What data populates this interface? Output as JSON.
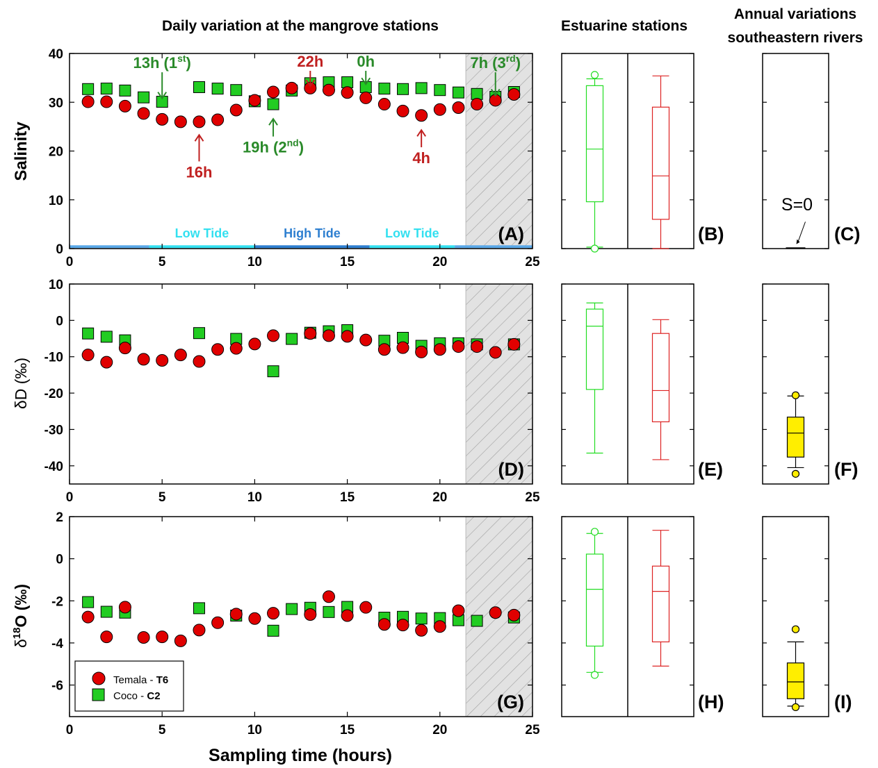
{
  "titles": {
    "main": "Daily variation at the mangrove stations",
    "estuarine": "Estuarine stations",
    "annual_line1": "Annual variations",
    "annual_line2": "southeastern rivers"
  },
  "axes": {
    "xlabel": "Sampling time (hours)",
    "ylabel_salinity": "Salinity",
    "ylabel_dD": "δD (‰)",
    "ylabel_d18O_prefix": "δ",
    "ylabel_d18O_sup": "18",
    "ylabel_d18O_suffix": "O (‰)",
    "xticks": [
      0,
      5,
      10,
      15,
      20,
      25
    ],
    "xlim": [
      0,
      25
    ],
    "salinity": {
      "ylim": [
        0,
        40
      ],
      "ticks": [
        0,
        10,
        20,
        30,
        40
      ]
    },
    "dD": {
      "ylim": [
        -45,
        10
      ],
      "ticks": [
        -40,
        -30,
        -20,
        -10,
        0,
        10
      ]
    },
    "d18O": {
      "ylim": [
        -7.5,
        2
      ],
      "ticks": [
        -6,
        -4,
        -2,
        0,
        2
      ]
    }
  },
  "panels": [
    "(A)",
    "(B)",
    "(C)",
    "(D)",
    "(E)",
    "(F)",
    "(G)",
    "(H)",
    "(I)"
  ],
  "legend": {
    "items": [
      {
        "name": "Temala - ",
        "bold": "T6",
        "color": "#e00000",
        "marker": "circle"
      },
      {
        "name": "Coco - ",
        "bold": "C2",
        "color": "#22cc22",
        "marker": "square"
      }
    ]
  },
  "tides": [
    {
      "label": "Low Tide",
      "color": "#33e0f0",
      "from": 4.3,
      "to": 10
    },
    {
      "label": "High Tide",
      "color": "#2e7fd0",
      "from": 10,
      "to": 16.2
    },
    {
      "label": "Low Tide",
      "color": "#33e0f0",
      "from": 16.2,
      "to": 20.8
    },
    {
      "label": "",
      "color": "#5aa8e8",
      "from": 0,
      "to": 4.3
    },
    {
      "label": "",
      "color": "#5aa8e8",
      "from": 20.8,
      "to": 25
    }
  ],
  "shade": {
    "from": 21.4,
    "to": 25
  },
  "annotations": [
    {
      "text": "13h (1",
      "sup": "st",
      "close": ")",
      "color": "green",
      "x": 5,
      "y_text": 37,
      "y_tip": 30.8,
      "dir": "down"
    },
    {
      "text": "19h (2",
      "sup": "nd",
      "close": ")",
      "color": "green",
      "x": 11,
      "y_text": 19.7,
      "y_tip": 26.6,
      "dir": "up"
    },
    {
      "text": "0h",
      "sup": "",
      "close": "",
      "color": "green",
      "x": 16,
      "y_text": 37.3,
      "y_tip": 33.7,
      "dir": "down"
    },
    {
      "text": "7h (3",
      "sup": "rd",
      "close": ")",
      "color": "green",
      "x": 23,
      "y_text": 37,
      "y_tip": 31.4,
      "dir": "down"
    },
    {
      "text": "22h",
      "sup": "",
      "close": "",
      "color": "red",
      "x": 13,
      "y_text": 37.3,
      "y_tip": 33.3,
      "dir": "down"
    },
    {
      "text": "16h",
      "sup": "",
      "close": "",
      "color": "red",
      "x": 7,
      "y_text": 14.6,
      "y_tip": 23.3,
      "dir": "up"
    },
    {
      "text": "4h",
      "sup": "",
      "close": "",
      "color": "red",
      "x": 19,
      "y_text": 17.5,
      "y_tip": 24.3,
      "dir": "up"
    }
  ],
  "s0_label": "S=0",
  "chart_data": [
    {
      "type": "scatter",
      "panel": "(A)",
      "ylabel": "Salinity",
      "xlabel": "",
      "xlim": [
        0,
        25
      ],
      "ylim": [
        0,
        40
      ],
      "series": [
        {
          "name": "Temala - T6",
          "x": [
            1,
            2,
            3,
            4,
            5,
            6,
            7,
            8,
            9,
            10,
            11,
            12,
            13,
            14,
            15,
            16,
            17,
            18,
            19,
            20,
            21,
            22,
            23,
            24
          ],
          "values": [
            30.1,
            30.1,
            29.2,
            27.7,
            26.5,
            26.0,
            26.0,
            26.4,
            28.4,
            30.4,
            32.1,
            32.9,
            32.9,
            32.5,
            32.0,
            30.9,
            29.6,
            28.2,
            27.3,
            28.5,
            28.9,
            29.6,
            30.4,
            31.6
          ]
        },
        {
          "name": "Coco - C2",
          "x": [
            1,
            2,
            3,
            4,
            5,
            7,
            8,
            9,
            10,
            11,
            12,
            13,
            14,
            15,
            16,
            17,
            18,
            19,
            20,
            21,
            22,
            23,
            24
          ],
          "values": [
            32.7,
            32.8,
            32.4,
            31.0,
            30.1,
            33.1,
            32.8,
            32.5,
            30.2,
            29.6,
            32.4,
            33.9,
            34.1,
            34.1,
            33.1,
            32.8,
            32.7,
            32.9,
            32.5,
            32.0,
            31.7,
            31.1,
            32.1
          ]
        }
      ]
    },
    {
      "type": "scatter",
      "panel": "(D)",
      "ylabel": "δD (‰)",
      "xlabel": "",
      "xlim": [
        0,
        25
      ],
      "ylim": [
        -45,
        10
      ],
      "series": [
        {
          "name": "Temala - T6",
          "x": [
            1,
            2,
            3,
            4,
            5,
            6,
            7,
            8,
            9,
            10,
            11,
            13,
            14,
            15,
            16,
            17,
            18,
            19,
            20,
            21,
            22,
            23,
            24
          ],
          "values": [
            -9.5,
            -11.5,
            -7.6,
            -10.7,
            -11.0,
            -9.5,
            -11.3,
            -8.0,
            -7.7,
            -6.5,
            -4.2,
            -3.6,
            -4.2,
            -4.4,
            -5.4,
            -8.0,
            -7.5,
            -8.7,
            -8.0,
            -7.2,
            -7.2,
            -8.8,
            -6.6
          ]
        },
        {
          "name": "Coco - C2",
          "x": [
            1,
            2,
            3,
            7,
            9,
            11,
            12,
            13,
            14,
            15,
            17,
            18,
            19,
            20,
            21,
            22,
            24
          ],
          "values": [
            -3.6,
            -4.5,
            -5.5,
            -3.5,
            -5.1,
            -14.0,
            -5.1,
            -3.4,
            -3.0,
            -2.7,
            -5.6,
            -4.8,
            -7.0,
            -6.3,
            -6.3,
            -6.6,
            -6.6
          ]
        }
      ]
    },
    {
      "type": "scatter",
      "panel": "(G)",
      "ylabel": "δ18O (‰)",
      "xlabel": "Sampling time (hours)",
      "xlim": [
        0,
        25
      ],
      "ylim": [
        -7.5,
        2
      ],
      "series": [
        {
          "name": "Temala - T6",
          "x": [
            1,
            2,
            3,
            4,
            5,
            6,
            7,
            8,
            9,
            10,
            11,
            13,
            14,
            15,
            16,
            17,
            18,
            19,
            20,
            21,
            23,
            24
          ],
          "values": [
            -2.77,
            -3.71,
            -2.3,
            -3.74,
            -3.71,
            -3.9,
            -3.39,
            -3.04,
            -2.63,
            -2.84,
            -2.59,
            -2.65,
            -1.8,
            -2.7,
            -2.31,
            -3.12,
            -3.15,
            -3.4,
            -3.22,
            -2.47,
            -2.56,
            -2.68
          ]
        },
        {
          "name": "Coco - C2",
          "x": [
            1,
            2,
            3,
            7,
            9,
            11,
            12,
            13,
            14,
            15,
            17,
            18,
            19,
            20,
            21,
            22,
            24
          ],
          "values": [
            -2.06,
            -2.52,
            -2.56,
            -2.35,
            -2.7,
            -3.42,
            -2.39,
            -2.33,
            -2.53,
            -2.29,
            -2.8,
            -2.76,
            -2.84,
            -2.82,
            -2.92,
            -2.95,
            -2.79
          ]
        }
      ]
    },
    {
      "type": "box",
      "panel": "(B)",
      "title": "Estuarine stations",
      "ylim": [
        0,
        40
      ],
      "boxes": [
        {
          "color": "#22dd22",
          "min": 0.3,
          "q1": 9.6,
          "median": 20.4,
          "q3": 33.4,
          "max": 34.8,
          "outliers": [
            0.0,
            35.6
          ]
        },
        {
          "color": "#dd2222",
          "min": 0.0,
          "q1": 6.0,
          "median": 14.9,
          "q3": 29.0,
          "max": 35.4,
          "outliers": []
        }
      ]
    },
    {
      "type": "box",
      "panel": "(C)",
      "title": "Annual variations southeastern rivers",
      "ylim": [
        0,
        40
      ],
      "boxes": [
        {
          "color": "#000000",
          "min": 0,
          "q1": 0,
          "median": 0,
          "q3": 0,
          "max": 0,
          "outliers": []
        }
      ]
    },
    {
      "type": "box",
      "panel": "(E)",
      "ylim": [
        -45,
        10
      ],
      "boxes": [
        {
          "color": "#22dd22",
          "min": -36.5,
          "q1": -19.0,
          "median": -1.6,
          "q3": 3.1,
          "max": 4.8,
          "outliers": []
        },
        {
          "color": "#dd2222",
          "min": -38.3,
          "q1": -27.9,
          "median": -19.3,
          "q3": -3.6,
          "max": 0.2,
          "outliers": []
        }
      ]
    },
    {
      "type": "box",
      "panel": "(F)",
      "ylim": [
        -45,
        10
      ],
      "boxes": [
        {
          "color": "#ffee00",
          "min": -40.5,
          "q1": -37.6,
          "median": -31.0,
          "q3": -26.6,
          "max": -20.8,
          "outliers": [
            -20.6,
            -42.2
          ]
        }
      ]
    },
    {
      "type": "box",
      "panel": "(H)",
      "ylim": [
        -7.5,
        2
      ],
      "boxes": [
        {
          "color": "#22dd22",
          "min": -5.4,
          "q1": -4.15,
          "median": -1.45,
          "q3": 0.22,
          "max": 1.2,
          "outliers": [
            1.28,
            -5.52
          ]
        },
        {
          "color": "#dd2222",
          "min": -5.1,
          "q1": -3.95,
          "median": -1.55,
          "q3": -0.35,
          "max": 1.35,
          "outliers": []
        }
      ]
    },
    {
      "type": "box",
      "panel": "(I)",
      "ylim": [
        -7.5,
        2
      ],
      "boxes": [
        {
          "color": "#ffee00",
          "min": -7.0,
          "q1": -6.65,
          "median": -5.85,
          "q3": -4.95,
          "max": -3.95,
          "outliers": [
            -3.35,
            -7.05
          ]
        }
      ]
    }
  ]
}
